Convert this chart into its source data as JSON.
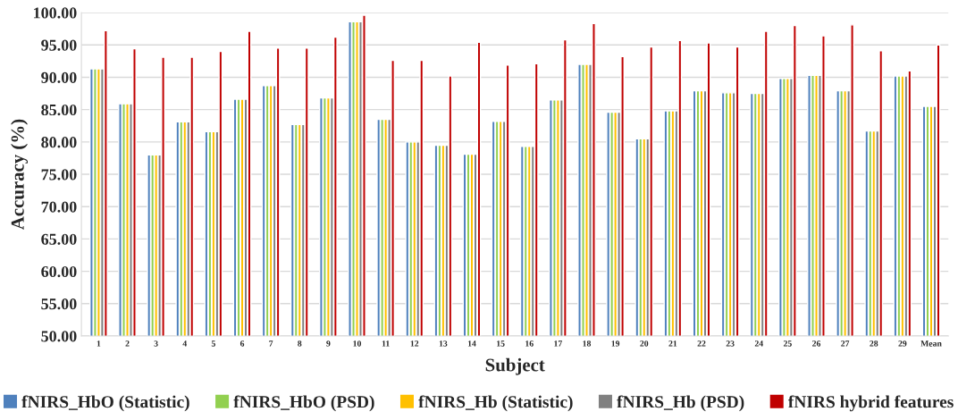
{
  "chart_data": {
    "type": "bar",
    "xlabel": "Subject",
    "ylabel": "Accuracy (%)",
    "categories": [
      "1",
      "2",
      "3",
      "4",
      "5",
      "6",
      "7",
      "8",
      "9",
      "10",
      "11",
      "12",
      "13",
      "14",
      "15",
      "16",
      "17",
      "18",
      "19",
      "20",
      "21",
      "22",
      "23",
      "24",
      "25",
      "26",
      "27",
      "28",
      "29",
      "Mean"
    ],
    "series": [
      {
        "name": "fNIRS_HbO (Statistic)",
        "color": "#4f81bd",
        "values": [
          91.3,
          85.9,
          78.0,
          83.1,
          81.6,
          86.6,
          88.7,
          82.7,
          86.8,
          98.6,
          83.5,
          80.0,
          79.5,
          78.1,
          83.2,
          79.3,
          86.5,
          92.0,
          84.6,
          80.5,
          84.8,
          87.9,
          87.6,
          87.5,
          89.8,
          90.3,
          87.9,
          81.7,
          90.2,
          85.5
        ]
      },
      {
        "name": "fNIRS_HbO (PSD)",
        "color": "#92d050",
        "values": [
          91.3,
          85.9,
          78.0,
          83.1,
          81.6,
          86.6,
          88.7,
          82.7,
          86.8,
          98.6,
          83.5,
          80.0,
          79.5,
          78.1,
          83.2,
          79.3,
          86.5,
          92.0,
          84.6,
          80.5,
          84.8,
          87.9,
          87.6,
          87.5,
          89.8,
          90.3,
          87.9,
          81.7,
          90.2,
          85.5
        ]
      },
      {
        "name": "fNIRS_Hb (Statistic)",
        "color": "#ffc000",
        "values": [
          91.3,
          85.9,
          78.0,
          83.1,
          81.6,
          86.6,
          88.7,
          82.7,
          86.8,
          98.6,
          83.5,
          80.0,
          79.5,
          78.1,
          83.2,
          79.3,
          86.5,
          92.0,
          84.6,
          80.5,
          84.8,
          87.9,
          87.6,
          87.5,
          89.8,
          90.3,
          87.9,
          81.7,
          90.2,
          85.5
        ]
      },
      {
        "name": "fNIRS_Hb (PSD)",
        "color": "#808080",
        "values": [
          91.3,
          85.9,
          78.0,
          83.1,
          81.6,
          86.6,
          88.7,
          82.7,
          86.8,
          98.6,
          83.5,
          80.0,
          79.5,
          78.1,
          83.2,
          79.3,
          86.5,
          92.0,
          84.6,
          80.5,
          84.8,
          87.9,
          87.6,
          87.5,
          89.8,
          90.3,
          87.9,
          81.7,
          90.2,
          85.5
        ]
      },
      {
        "name": "fNIRS hybrid features",
        "color": "#c00000",
        "values": [
          97.2,
          94.4,
          93.1,
          93.1,
          94.0,
          97.1,
          94.5,
          94.5,
          96.2,
          99.6,
          92.6,
          92.6,
          90.2,
          95.4,
          91.9,
          92.1,
          95.8,
          98.3,
          93.2,
          94.7,
          95.7,
          95.3,
          94.7,
          97.1,
          98.0,
          96.4,
          98.1,
          94.1,
          91.0,
          95.0
        ]
      }
    ],
    "ylim": [
      50,
      100
    ],
    "yticks": [
      {
        "value": 50,
        "label": "50.00"
      },
      {
        "value": 55,
        "label": "55.00"
      },
      {
        "value": 60,
        "label": "60.00"
      },
      {
        "value": 65,
        "label": "65.00"
      },
      {
        "value": 70,
        "label": "70.00"
      },
      {
        "value": 75,
        "label": "75.00"
      },
      {
        "value": 80,
        "label": "80.00"
      },
      {
        "value": 85,
        "label": "85.00"
      },
      {
        "value": 90,
        "label": "90.00"
      },
      {
        "value": 95,
        "label": "95.00"
      },
      {
        "value": 100,
        "label": "100.00"
      }
    ],
    "grid": "y",
    "legend": "bottom"
  }
}
